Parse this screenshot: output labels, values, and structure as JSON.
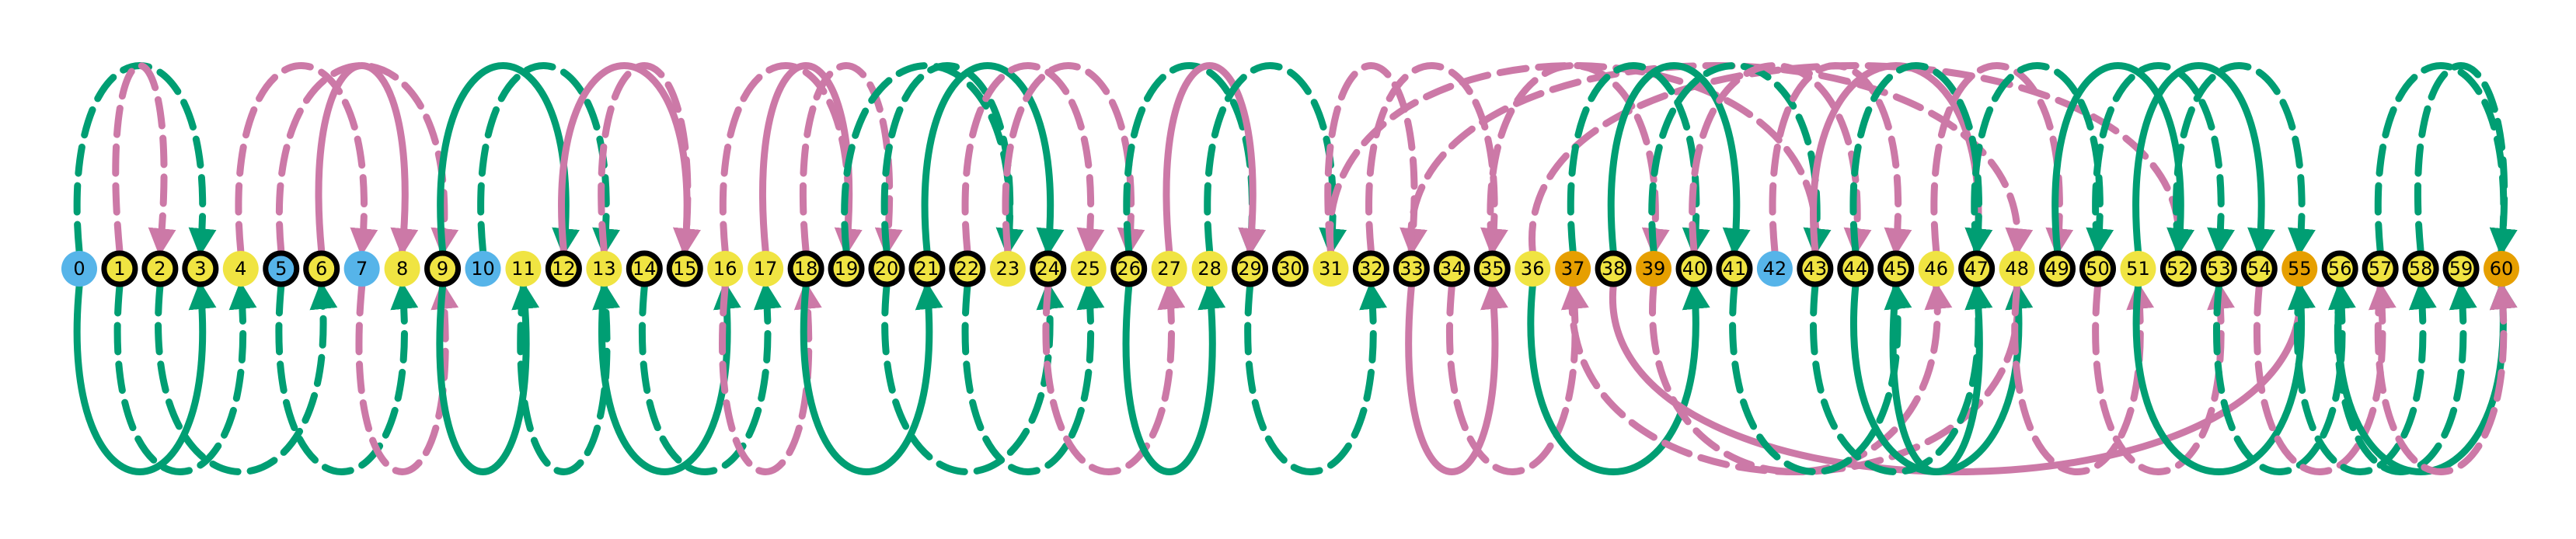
{
  "colors": {
    "background": "#ffffff",
    "node_blue": "#56B4E9",
    "node_yellow": "#F0E442",
    "node_orange": "#E69F00",
    "node_ring": "#000000",
    "edge_green": "#009E73",
    "edge_pink": "#CC79A7"
  },
  "nodes": [
    {
      "label": "0",
      "fill": "blue",
      "ring": false
    },
    {
      "label": "1",
      "fill": "yellow",
      "ring": true
    },
    {
      "label": "2",
      "fill": "yellow",
      "ring": true
    },
    {
      "label": "3",
      "fill": "yellow",
      "ring": true
    },
    {
      "label": "4",
      "fill": "yellow",
      "ring": false
    },
    {
      "label": "5",
      "fill": "blue",
      "ring": true
    },
    {
      "label": "6",
      "fill": "yellow",
      "ring": true
    },
    {
      "label": "7",
      "fill": "blue",
      "ring": false
    },
    {
      "label": "8",
      "fill": "yellow",
      "ring": false
    },
    {
      "label": "9",
      "fill": "yellow",
      "ring": true
    },
    {
      "label": "10",
      "fill": "blue",
      "ring": false
    },
    {
      "label": "11",
      "fill": "yellow",
      "ring": false
    },
    {
      "label": "12",
      "fill": "yellow",
      "ring": true
    },
    {
      "label": "13",
      "fill": "yellow",
      "ring": false
    },
    {
      "label": "14",
      "fill": "yellow",
      "ring": true
    },
    {
      "label": "15",
      "fill": "yellow",
      "ring": true
    },
    {
      "label": "16",
      "fill": "yellow",
      "ring": false
    },
    {
      "label": "17",
      "fill": "yellow",
      "ring": false
    },
    {
      "label": "18",
      "fill": "yellow",
      "ring": true
    },
    {
      "label": "19",
      "fill": "yellow",
      "ring": true
    },
    {
      "label": "20",
      "fill": "yellow",
      "ring": true
    },
    {
      "label": "21",
      "fill": "yellow",
      "ring": true
    },
    {
      "label": "22",
      "fill": "yellow",
      "ring": true
    },
    {
      "label": "23",
      "fill": "yellow",
      "ring": false
    },
    {
      "label": "24",
      "fill": "yellow",
      "ring": true
    },
    {
      "label": "25",
      "fill": "yellow",
      "ring": false
    },
    {
      "label": "26",
      "fill": "yellow",
      "ring": true
    },
    {
      "label": "27",
      "fill": "yellow",
      "ring": false
    },
    {
      "label": "28",
      "fill": "yellow",
      "ring": false
    },
    {
      "label": "29",
      "fill": "yellow",
      "ring": true
    },
    {
      "label": "30",
      "fill": "yellow",
      "ring": true
    },
    {
      "label": "31",
      "fill": "yellow",
      "ring": false
    },
    {
      "label": "32",
      "fill": "yellow",
      "ring": true
    },
    {
      "label": "33",
      "fill": "yellow",
      "ring": true
    },
    {
      "label": "34",
      "fill": "yellow",
      "ring": true
    },
    {
      "label": "35",
      "fill": "yellow",
      "ring": true
    },
    {
      "label": "36",
      "fill": "yellow",
      "ring": false
    },
    {
      "label": "37",
      "fill": "orange",
      "ring": false
    },
    {
      "label": "38",
      "fill": "yellow",
      "ring": true
    },
    {
      "label": "39",
      "fill": "orange",
      "ring": false
    },
    {
      "label": "40",
      "fill": "yellow",
      "ring": true
    },
    {
      "label": "41",
      "fill": "yellow",
      "ring": true
    },
    {
      "label": "42",
      "fill": "blue",
      "ring": false
    },
    {
      "label": "43",
      "fill": "yellow",
      "ring": true
    },
    {
      "label": "44",
      "fill": "yellow",
      "ring": true
    },
    {
      "label": "45",
      "fill": "yellow",
      "ring": true
    },
    {
      "label": "46",
      "fill": "yellow",
      "ring": false
    },
    {
      "label": "47",
      "fill": "yellow",
      "ring": true
    },
    {
      "label": "48",
      "fill": "yellow",
      "ring": false
    },
    {
      "label": "49",
      "fill": "yellow",
      "ring": true
    },
    {
      "label": "50",
      "fill": "yellow",
      "ring": true
    },
    {
      "label": "51",
      "fill": "yellow",
      "ring": false
    },
    {
      "label": "52",
      "fill": "yellow",
      "ring": true
    },
    {
      "label": "53",
      "fill": "yellow",
      "ring": true
    },
    {
      "label": "54",
      "fill": "yellow",
      "ring": true
    },
    {
      "label": "55",
      "fill": "orange",
      "ring": false
    },
    {
      "label": "56",
      "fill": "yellow",
      "ring": true
    },
    {
      "label": "57",
      "fill": "yellow",
      "ring": true
    },
    {
      "label": "58",
      "fill": "yellow",
      "ring": true
    },
    {
      "label": "59",
      "fill": "yellow",
      "ring": true
    },
    {
      "label": "60",
      "fill": "orange",
      "ring": false
    }
  ],
  "edges": [
    {
      "from": 0,
      "to": 3,
      "color": "green",
      "style": "dashed",
      "side": "top"
    },
    {
      "from": 0,
      "to": 3,
      "color": "green",
      "style": "solid",
      "side": "bottom"
    },
    {
      "from": 1,
      "to": 2,
      "color": "pink",
      "style": "dashed",
      "side": "top"
    },
    {
      "from": 1,
      "to": 4,
      "color": "green",
      "style": "dashed",
      "side": "bottom"
    },
    {
      "from": 2,
      "to": 6,
      "color": "green",
      "style": "dashed",
      "side": "bottom"
    },
    {
      "from": 4,
      "to": 7,
      "color": "pink",
      "style": "dashed",
      "side": "top"
    },
    {
      "from": 5,
      "to": 9,
      "color": "pink",
      "style": "dashed",
      "side": "top"
    },
    {
      "from": 6,
      "to": 8,
      "color": "pink",
      "style": "solid",
      "side": "top"
    },
    {
      "from": 5,
      "to": 8,
      "color": "green",
      "style": "dashed",
      "side": "bottom"
    },
    {
      "from": 7,
      "to": 9,
      "color": "pink",
      "style": "dashed",
      "side": "bottom"
    },
    {
      "from": 9,
      "to": 12,
      "color": "green",
      "style": "solid",
      "side": "top"
    },
    {
      "from": 10,
      "to": 13,
      "color": "green",
      "style": "dashed",
      "side": "top"
    },
    {
      "from": 9,
      "to": 11,
      "color": "green",
      "style": "solid",
      "side": "bottom"
    },
    {
      "from": 11,
      "to": 13,
      "color": "green",
      "style": "dashed",
      "side": "bottom"
    },
    {
      "from": 12,
      "to": 15,
      "color": "pink",
      "style": "solid",
      "side": "top"
    },
    {
      "from": 13,
      "to": 15,
      "color": "pink",
      "style": "dashed",
      "side": "top"
    },
    {
      "from": 13,
      "to": 16,
      "color": "green",
      "style": "solid",
      "side": "bottom"
    },
    {
      "from": 14,
      "to": 17,
      "color": "green",
      "style": "dashed",
      "side": "bottom"
    },
    {
      "from": 16,
      "to": 19,
      "color": "pink",
      "style": "dashed",
      "side": "top"
    },
    {
      "from": 17,
      "to": 19,
      "color": "pink",
      "style": "solid",
      "side": "top"
    },
    {
      "from": 18,
      "to": 20,
      "color": "pink",
      "style": "dashed",
      "side": "top"
    },
    {
      "from": 16,
      "to": 18,
      "color": "pink",
      "style": "dashed",
      "side": "bottom"
    },
    {
      "from": 18,
      "to": 21,
      "color": "green",
      "style": "solid",
      "side": "bottom"
    },
    {
      "from": 19,
      "to": 23,
      "color": "green",
      "style": "dashed",
      "side": "top"
    },
    {
      "from": 20,
      "to": 23,
      "color": "green",
      "style": "dashed",
      "side": "top"
    },
    {
      "from": 21,
      "to": 24,
      "color": "green",
      "style": "solid",
      "side": "top"
    },
    {
      "from": 20,
      "to": 24,
      "color": "green",
      "style": "dashed",
      "side": "bottom"
    },
    {
      "from": 22,
      "to": 25,
      "color": "pink",
      "style": "dashed",
      "side": "top"
    },
    {
      "from": 23,
      "to": 26,
      "color": "pink",
      "style": "dashed",
      "side": "top"
    },
    {
      "from": 22,
      "to": 25,
      "color": "green",
      "style": "dashed",
      "side": "bottom"
    },
    {
      "from": 24,
      "to": 27,
      "color": "pink",
      "style": "dashed",
      "side": "bottom"
    },
    {
      "from": 26,
      "to": 29,
      "color": "green",
      "style": "dashed",
      "side": "top"
    },
    {
      "from": 27,
      "to": 29,
      "color": "pink",
      "style": "solid",
      "side": "top"
    },
    {
      "from": 26,
      "to": 28,
      "color": "green",
      "style": "solid",
      "side": "bottom"
    },
    {
      "from": 28,
      "to": 31,
      "color": "green",
      "style": "dashed",
      "side": "top"
    },
    {
      "from": 29,
      "to": 32,
      "color": "green",
      "style": "dashed",
      "side": "bottom"
    },
    {
      "from": 31,
      "to": 33,
      "color": "pink",
      "style": "dashed",
      "side": "top"
    },
    {
      "from": 32,
      "to": 35,
      "color": "pink",
      "style": "dashed",
      "side": "top"
    },
    {
      "from": 33,
      "to": 35,
      "color": "pink",
      "style": "solid",
      "side": "bottom"
    },
    {
      "from": 34,
      "to": 37,
      "color": "pink",
      "style": "dashed",
      "side": "bottom"
    },
    {
      "from": 35,
      "to": 39,
      "color": "pink",
      "style": "dashed",
      "side": "top"
    },
    {
      "from": 31,
      "to": 43,
      "color": "pink",
      "style": "dashed",
      "side": "top"
    },
    {
      "from": 33,
      "to": 48,
      "color": "pink",
      "style": "dashed",
      "side": "top"
    },
    {
      "from": 36,
      "to": 52,
      "color": "pink",
      "style": "dashed",
      "side": "top"
    },
    {
      "from": 37,
      "to": 40,
      "color": "green",
      "style": "dashed",
      "side": "top"
    },
    {
      "from": 38,
      "to": 41,
      "color": "green",
      "style": "solid",
      "side": "top"
    },
    {
      "from": 39,
      "to": 43,
      "color": "green",
      "style": "dashed",
      "side": "top"
    },
    {
      "from": 40,
      "to": 44,
      "color": "pink",
      "style": "dashed",
      "side": "top"
    },
    {
      "from": 36,
      "to": 40,
      "color": "green",
      "style": "solid",
      "side": "bottom"
    },
    {
      "from": 37,
      "to": 48,
      "color": "pink",
      "style": "dashed",
      "side": "bottom"
    },
    {
      "from": 38,
      "to": 55,
      "color": "pink",
      "style": "solid",
      "side": "bottom"
    },
    {
      "from": 39,
      "to": 46,
      "color": "pink",
      "style": "dashed",
      "side": "bottom"
    },
    {
      "from": 41,
      "to": 45,
      "color": "green",
      "style": "dashed",
      "side": "bottom"
    },
    {
      "from": 42,
      "to": 45,
      "color": "pink",
      "style": "dashed",
      "side": "top"
    },
    {
      "from": 43,
      "to": 47,
      "color": "pink",
      "style": "solid",
      "side": "top"
    },
    {
      "from": 44,
      "to": 47,
      "color": "green",
      "style": "dashed",
      "side": "top"
    },
    {
      "from": 43,
      "to": 47,
      "color": "green",
      "style": "dashed",
      "side": "bottom"
    },
    {
      "from": 44,
      "to": 48,
      "color": "green",
      "style": "solid",
      "side": "bottom"
    },
    {
      "from": 45,
      "to": 47,
      "color": "green",
      "style": "solid",
      "side": "bottom"
    },
    {
      "from": 46,
      "to": 49,
      "color": "pink",
      "style": "dashed",
      "side": "top"
    },
    {
      "from": 47,
      "to": 50,
      "color": "green",
      "style": "dashed",
      "side": "top"
    },
    {
      "from": 48,
      "to": 51,
      "color": "pink",
      "style": "dashed",
      "side": "bottom"
    },
    {
      "from": 49,
      "to": 52,
      "color": "green",
      "style": "solid",
      "side": "top"
    },
    {
      "from": 50,
      "to": 53,
      "color": "green",
      "style": "dashed",
      "side": "top"
    },
    {
      "from": 51,
      "to": 54,
      "color": "green",
      "style": "solid",
      "side": "top"
    },
    {
      "from": 52,
      "to": 55,
      "color": "green",
      "style": "dashed",
      "side": "top"
    },
    {
      "from": 50,
      "to": 53,
      "color": "pink",
      "style": "dashed",
      "side": "bottom"
    },
    {
      "from": 51,
      "to": 55,
      "color": "green",
      "style": "solid",
      "side": "bottom"
    },
    {
      "from": 53,
      "to": 56,
      "color": "green",
      "style": "dashed",
      "side": "bottom"
    },
    {
      "from": 54,
      "to": 57,
      "color": "pink",
      "style": "dashed",
      "side": "bottom"
    },
    {
      "from": 55,
      "to": 58,
      "color": "green",
      "style": "dashed",
      "side": "bottom"
    },
    {
      "from": 56,
      "to": 59,
      "color": "green",
      "style": "dashed",
      "side": "bottom"
    },
    {
      "from": 57,
      "to": 60,
      "color": "green",
      "style": "dashed",
      "side": "top"
    },
    {
      "from": 58,
      "to": 60,
      "color": "green",
      "style": "dashed",
      "side": "top"
    },
    {
      "from": 56,
      "to": 60,
      "color": "green",
      "style": "solid",
      "side": "bottom"
    },
    {
      "from": 57,
      "to": 60,
      "color": "pink",
      "style": "dashed",
      "side": "bottom"
    }
  ]
}
